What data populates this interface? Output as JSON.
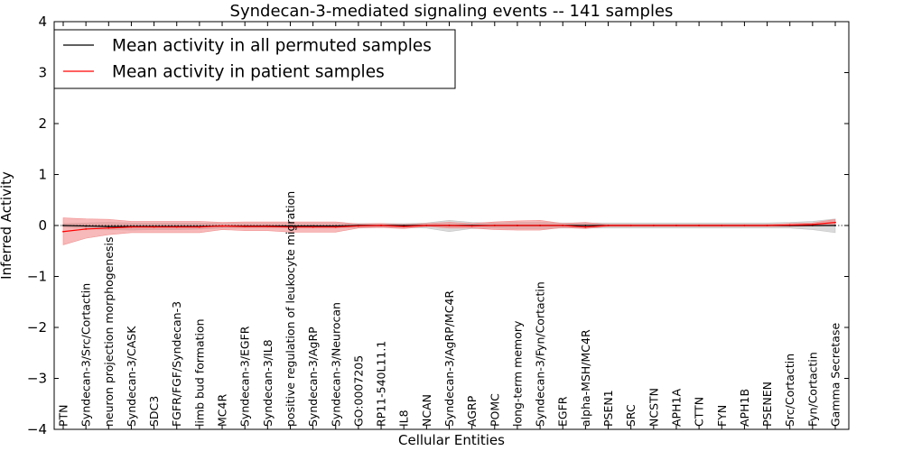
{
  "chart_data": {
    "type": "line",
    "title": "Syndecan-3-mediated signaling events -- 141 samples",
    "xlabel": "Cellular Entities",
    "ylabel": "Inferred Activity",
    "ylim": [
      -4,
      4
    ],
    "yticks": [
      "−4",
      "−3",
      "−2",
      "−1",
      "0",
      "1",
      "2",
      "3",
      "4"
    ],
    "ytick_values": [
      -4,
      -3,
      -2,
      -1,
      0,
      1,
      2,
      3,
      4
    ],
    "legend_position": "top-left",
    "colors": {
      "permuted": "#000000",
      "patient": "#ff0000",
      "patient_band": "#f08080",
      "permuted_band": "#bbbbbb"
    },
    "categories": [
      "PTN",
      "Syndecan-3/Src/Cortactin",
      "neuron projection morphogenesis",
      "Syndecan-3/CASK",
      "SDC3",
      "FGFR/FGF/Syndecan-3",
      "limb bud formation",
      "MC4R",
      "Syndecan-3/EGFR",
      "Syndecan-3/IL8",
      "positive regulation of leukocyte migration",
      "Syndecan-3/AgRP",
      "Syndecan-3/Neurocan",
      "GO:0007205",
      "RP11-540L11.1",
      "IL8",
      "NCAN",
      "Syndecan-3/AgRP/MC4R",
      "AGRP",
      "POMC",
      "long-term memory",
      "Syndecan-3/Fyn/Cortactin",
      "EGFR",
      "alpha-MSH/MC4R",
      "PSEN1",
      "SRC",
      "NCSTN",
      "APH1A",
      "CTTN",
      "FYN",
      "APH1B",
      "PSENEN",
      "Src/Cortactin",
      "Fyn/Cortactin",
      "Gamma Secretase"
    ],
    "series": [
      {
        "name": "Mean activity in all permuted samples",
        "color": "#000000",
        "values": [
          0.0,
          -0.01,
          -0.02,
          -0.02,
          -0.02,
          -0.02,
          -0.02,
          -0.01,
          -0.01,
          -0.01,
          -0.01,
          -0.01,
          -0.01,
          0.0,
          0.0,
          0.0,
          0.0,
          0.0,
          0.0,
          0.0,
          0.0,
          0.0,
          0.0,
          0.0,
          0.0,
          0.0,
          0.0,
          0.0,
          0.0,
          0.0,
          0.0,
          0.0,
          0.0,
          0.0,
          0.0
        ],
        "lower": [
          -0.03,
          -0.06,
          -0.08,
          -0.09,
          -0.08,
          -0.08,
          -0.07,
          -0.05,
          -0.05,
          -0.05,
          -0.05,
          -0.05,
          -0.05,
          -0.04,
          -0.04,
          -0.04,
          -0.05,
          -0.12,
          -0.06,
          -0.05,
          -0.06,
          -0.06,
          -0.05,
          -0.05,
          -0.05,
          -0.05,
          -0.05,
          -0.05,
          -0.05,
          -0.05,
          -0.05,
          -0.05,
          -0.05,
          -0.08,
          -0.14
        ],
        "upper": [
          0.04,
          0.05,
          0.06,
          0.05,
          0.05,
          0.05,
          0.05,
          0.04,
          0.04,
          0.04,
          0.04,
          0.04,
          0.04,
          0.04,
          0.04,
          0.04,
          0.05,
          0.1,
          0.06,
          0.05,
          0.06,
          0.06,
          0.05,
          0.05,
          0.05,
          0.05,
          0.05,
          0.05,
          0.05,
          0.05,
          0.05,
          0.05,
          0.06,
          0.08,
          0.13
        ]
      },
      {
        "name": "Mean activity in patient samples",
        "color": "#ff0000",
        "values": [
          -0.12,
          -0.07,
          -0.05,
          -0.03,
          -0.03,
          -0.03,
          -0.03,
          -0.01,
          -0.02,
          -0.02,
          -0.03,
          -0.03,
          -0.03,
          -0.01,
          0.0,
          -0.02,
          0.0,
          0.0,
          -0.01,
          0.0,
          0.0,
          0.0,
          0.0,
          -0.03,
          0.0,
          0.0,
          0.0,
          0.0,
          0.0,
          0.0,
          0.0,
          0.0,
          0.01,
          0.02,
          0.06
        ],
        "lower": [
          -0.38,
          -0.25,
          -0.18,
          -0.14,
          -0.14,
          -0.14,
          -0.14,
          -0.08,
          -0.1,
          -0.1,
          -0.13,
          -0.13,
          -0.13,
          -0.05,
          -0.04,
          -0.06,
          -0.02,
          -0.05,
          -0.05,
          -0.08,
          -0.09,
          -0.09,
          -0.04,
          -0.06,
          -0.02,
          -0.02,
          -0.02,
          -0.02,
          -0.02,
          -0.02,
          -0.02,
          -0.02,
          -0.02,
          -0.01,
          0.0
        ],
        "upper": [
          0.15,
          0.13,
          0.12,
          0.08,
          0.08,
          0.08,
          0.08,
          0.06,
          0.07,
          0.07,
          0.07,
          0.07,
          0.07,
          0.03,
          0.04,
          0.02,
          0.04,
          0.06,
          0.04,
          0.07,
          0.09,
          0.1,
          0.04,
          0.06,
          0.02,
          0.02,
          0.02,
          0.02,
          0.02,
          0.02,
          0.02,
          0.02,
          0.04,
          0.05,
          0.12
        ]
      }
    ]
  }
}
